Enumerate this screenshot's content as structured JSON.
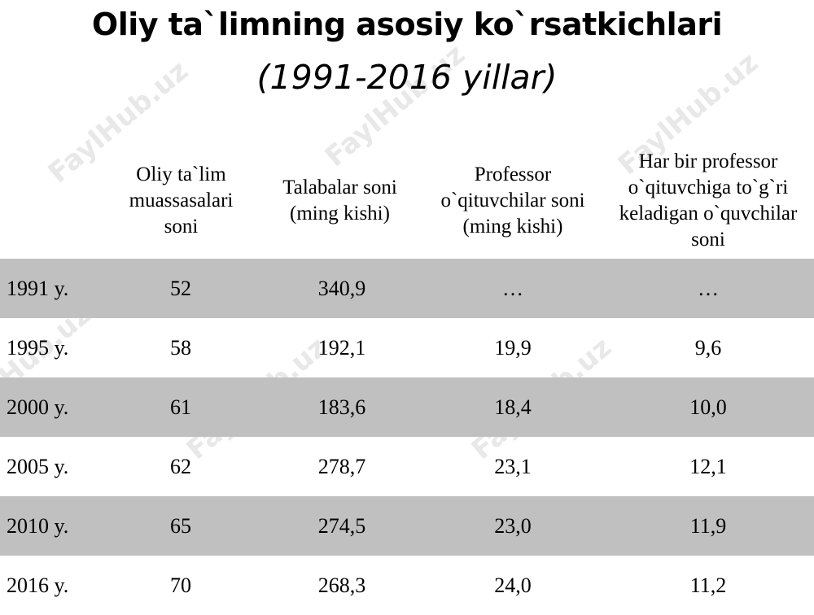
{
  "title": "Oliy ta`limning asosiy ko`rsatkichlari",
  "subtitle": "(1991-2016 yillar)",
  "watermark": "FaylHub.uz",
  "header": {
    "col1": [
      "Oliy ta`lim",
      "muassasalari",
      "soni"
    ],
    "col2": [
      "Talabalar soni",
      "(ming kishi)"
    ],
    "col3": [
      "Professor",
      "o`qituvchilar soni",
      "(ming kishi)"
    ],
    "col4": [
      "Har bir professor",
      "o`qituvchiga to`g`ri",
      "keladigan o`quvchilar",
      "soni"
    ]
  },
  "rows": [
    {
      "year": "1991 y.",
      "institutions": "52",
      "students": "340,9",
      "teachers": "…",
      "ratio": "…"
    },
    {
      "year": "1995 y.",
      "institutions": "58",
      "students": "192,1",
      "teachers": "19,9",
      "ratio": "9,6"
    },
    {
      "year": "2000 y.",
      "institutions": "61",
      "students": "183,6",
      "teachers": "18,4",
      "ratio": "10,0"
    },
    {
      "year": "2005 y.",
      "institutions": "62",
      "students": "278,7",
      "teachers": "23,1",
      "ratio": "12,1"
    },
    {
      "year": "2010 y.",
      "institutions": "65",
      "students": "274,5",
      "teachers": "23,0",
      "ratio": "11,9"
    },
    {
      "year": "2016 y.",
      "institutions": "70",
      "students": "268,3",
      "teachers": "24,0",
      "ratio": "11,2"
    }
  ],
  "colors": {
    "row_shade": "#c0c0c0",
    "background": "#ffffff"
  }
}
